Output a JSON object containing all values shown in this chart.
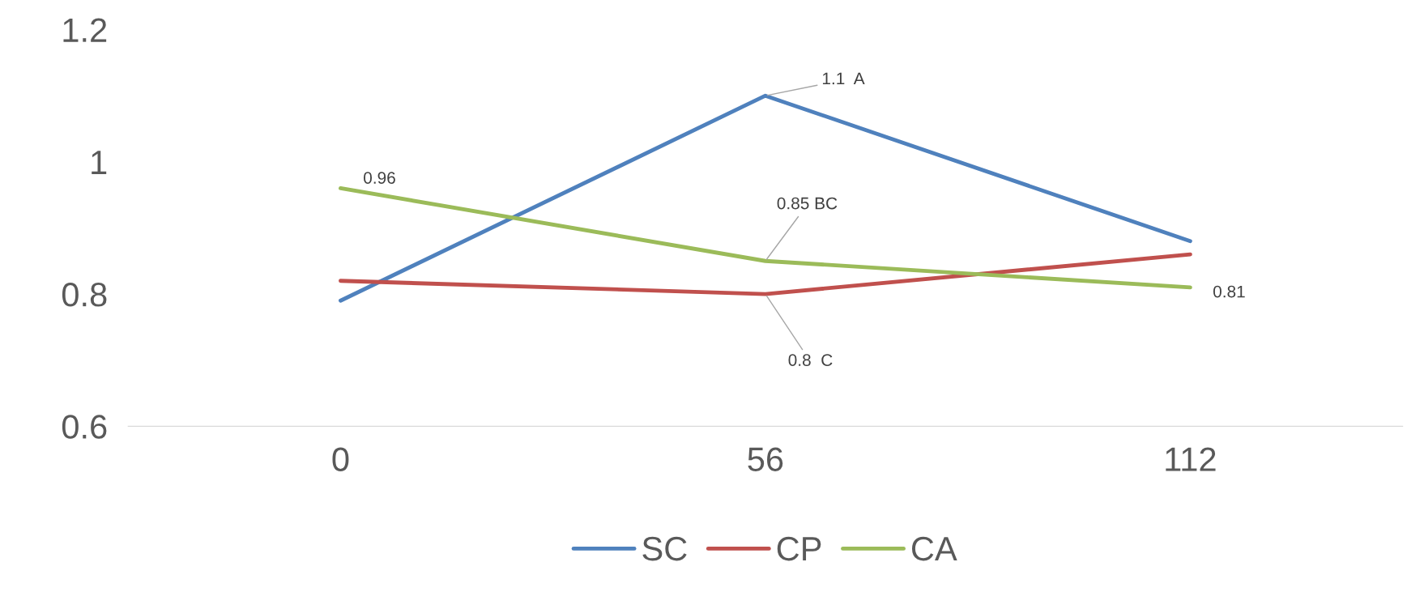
{
  "chart_data": {
    "type": "line",
    "categories": [
      "0",
      "56",
      "112"
    ],
    "series": [
      {
        "name": "SC",
        "color": "#4f81bd",
        "values": [
          0.79,
          1.1,
          0.88
        ]
      },
      {
        "name": "CP",
        "color": "#c0504d",
        "values": [
          0.82,
          0.8,
          0.86
        ]
      },
      {
        "name": "CA",
        "color": "#9bbb59",
        "values": [
          0.96,
          0.85,
          0.81
        ]
      }
    ],
    "ylim": [
      0.6,
      1.2
    ],
    "yticks": [
      0.6,
      0.8,
      1,
      1.2
    ],
    "annotations": [
      {
        "text": "0.96",
        "x": "0",
        "y": 0.96
      },
      {
        "text": "1.1  A",
        "x": "56",
        "y": 1.1
      },
      {
        "text": "0.85 BC",
        "x": "56",
        "y": 0.85
      },
      {
        "text": "0.8  C",
        "x": "56",
        "y": 0.8
      },
      {
        "text": "0.81",
        "x": "112",
        "y": 0.81
      }
    ],
    "grid": false,
    "legend": "bottom",
    "marker": "none",
    "line_style": "solid"
  }
}
